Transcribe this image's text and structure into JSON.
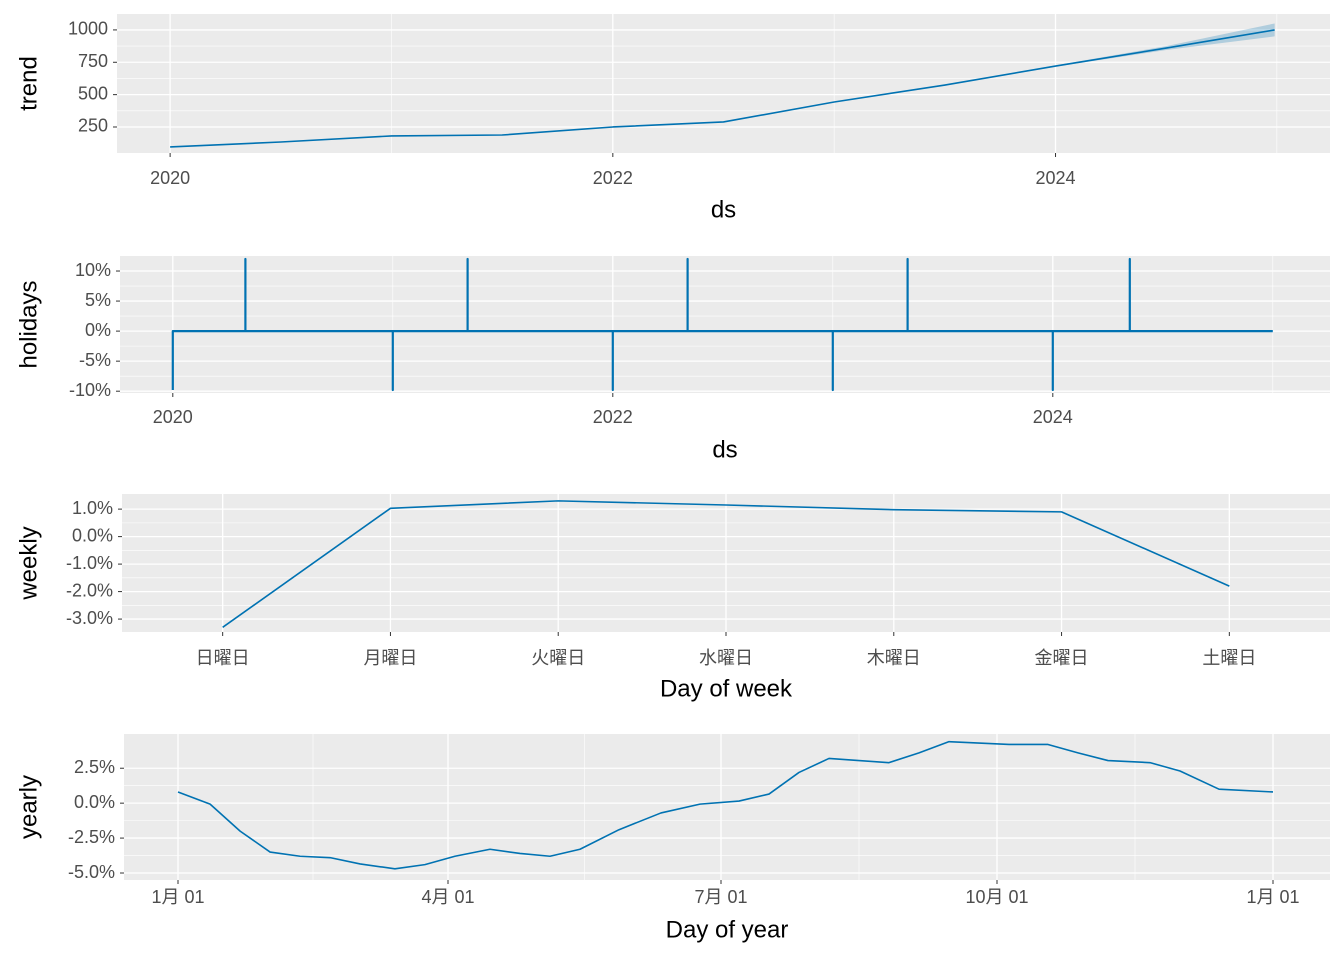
{
  "chart_data": [
    {
      "type": "line",
      "x_label": "ds",
      "y_label": "trend",
      "color": "#0072B2",
      "band_color": "#0072B2",
      "x": [
        2020,
        2020.5,
        2021,
        2021.5,
        2022,
        2022.5,
        2023,
        2023.5,
        2024,
        2024.5,
        2024.99
      ],
      "values": [
        96,
        134,
        181,
        188,
        250,
        289,
        443,
        574,
        721,
        860,
        1000
      ],
      "lower": [
        94,
        132,
        179,
        186,
        248,
        287,
        441,
        572,
        716,
        845,
        950
      ],
      "upper": [
        98,
        136,
        183,
        190,
        252,
        291,
        445,
        576,
        726,
        875,
        1050
      ],
      "xlim": [
        2019.76,
        2025.24
      ],
      "xticks": [
        2020,
        2022,
        2024
      ],
      "ylim": [
        49,
        1123
      ],
      "yticks": [
        250,
        500,
        750,
        1000
      ],
      "grid": true
    },
    {
      "type": "line",
      "x_label": "ds",
      "y_label": "holidays",
      "color": "#0072B2",
      "x": [
        2020,
        2020,
        2020.33,
        2020.33,
        2020.33,
        2021,
        2021,
        2021,
        2021.34,
        2021.34,
        2021.34,
        2022,
        2022,
        2022,
        2022.34,
        2022.34,
        2022.34,
        2023,
        2023,
        2023,
        2023.34,
        2023.34,
        2023.34,
        2024,
        2024,
        2024,
        2024.35,
        2024.35,
        2024.35,
        2025
      ],
      "values": [
        -9.8,
        0,
        0,
        12,
        0,
        0,
        -9.8,
        0,
        0,
        12,
        0,
        0,
        -9.8,
        0,
        0,
        12,
        0,
        0,
        -9.8,
        0,
        0,
        12,
        0,
        0,
        -9.8,
        0,
        0,
        12,
        0,
        0
      ],
      "xlim": [
        2019.76,
        2025.26
      ],
      "xticks": [
        2020,
        2022,
        2024
      ],
      "ylim": [
        -10.3,
        12.5
      ],
      "yticks": [
        {
          "value": -10,
          "label": "-10%"
        },
        {
          "value": -5,
          "label": "-5%"
        },
        {
          "value": 0,
          "label": "0%"
        },
        {
          "value": 5,
          "label": "5%"
        },
        {
          "value": 10,
          "label": "10%"
        }
      ],
      "grid": true
    },
    {
      "type": "line",
      "x_label": "Day of week",
      "y_label": "weekly",
      "color": "#0072B2",
      "categories": [
        "日曜日",
        "月曜日",
        "火曜日",
        "水曜日",
        "木曜日",
        "金曜日",
        "土曜日"
      ],
      "values": [
        -3.3,
        1.03,
        1.3,
        1.15,
        0.98,
        0.9,
        -1.8
      ],
      "ylim": [
        -3.47,
        1.55
      ],
      "yticks": [
        {
          "value": -3,
          "label": "-3.0%"
        },
        {
          "value": -2,
          "label": "-2.0%"
        },
        {
          "value": -1,
          "label": "-1.0%"
        },
        {
          "value": 0,
          "label": "0.0%"
        },
        {
          "value": 1,
          "label": "1.0%"
        }
      ],
      "grid": true
    },
    {
      "type": "line",
      "x_label": "Day of year",
      "y_label": "yearly",
      "color": "#0072B2",
      "x": [
        1,
        11.7,
        21.7,
        31.7,
        41.7,
        51.7,
        61.7,
        73.3,
        83.3,
        93.3,
        105,
        115,
        125,
        135,
        148,
        162,
        175,
        188,
        198,
        208,
        218,
        228,
        238,
        248,
        258,
        268,
        278,
        291,
        301,
        311,
        325,
        335,
        348,
        366
      ],
      "values": [
        0.8,
        -0.07,
        -2.0,
        -3.5,
        -3.8,
        -3.9,
        -4.35,
        -4.7,
        -4.4,
        -3.8,
        -3.3,
        -3.6,
        -3.8,
        -3.3,
        -1.9,
        -0.7,
        -0.07,
        0.15,
        0.65,
        2.2,
        3.2,
        3.05,
        2.9,
        3.6,
        4.4,
        4.3,
        4.2,
        4.2,
        3.6,
        3.05,
        2.9,
        2.3,
        1.0,
        0.8
      ],
      "xlim": [
        -17,
        385
      ],
      "xticks": [
        {
          "value": 1,
          "label": "1月 01"
        },
        {
          "value": 91,
          "label": "4月 01"
        },
        {
          "value": 182,
          "label": "7月 01"
        },
        {
          "value": 274,
          "label": "10月 01"
        },
        {
          "value": 366,
          "label": "1月 01"
        }
      ],
      "ylim": [
        -5.5,
        4.95
      ],
      "yticks": [
        {
          "value": -5,
          "label": "-5.0%"
        },
        {
          "value": -2.5,
          "label": "-2.5%"
        },
        {
          "value": 0,
          "label": "0.0%"
        },
        {
          "value": 2.5,
          "label": "2.5%"
        }
      ],
      "grid": true
    }
  ]
}
